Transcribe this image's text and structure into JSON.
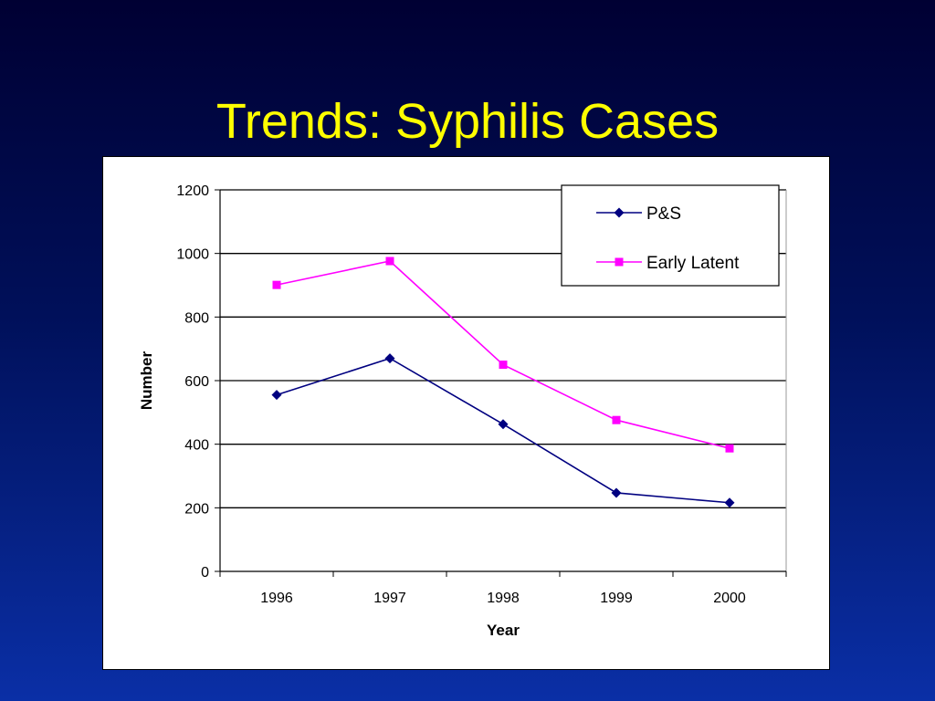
{
  "slide": {
    "title": "Trends: Syphilis Cases"
  },
  "chart_data": {
    "type": "line",
    "categories": [
      "1996",
      "1997",
      "1998",
      "1999",
      "2000"
    ],
    "series": [
      {
        "name": "P&S",
        "values": [
          555,
          670,
          463,
          247,
          216
        ],
        "color": "#000080",
        "marker": "diamond"
      },
      {
        "name": "Early Latent",
        "values": [
          901,
          976,
          650,
          476,
          387
        ],
        "color": "#ff00ff",
        "marker": "square"
      }
    ],
    "xlabel": "Year",
    "ylabel": "Number",
    "ylim": [
      0,
      1200
    ],
    "yticks": [
      0,
      200,
      400,
      600,
      800,
      1000,
      1200
    ],
    "grid": true,
    "legend_position": "top-right"
  }
}
